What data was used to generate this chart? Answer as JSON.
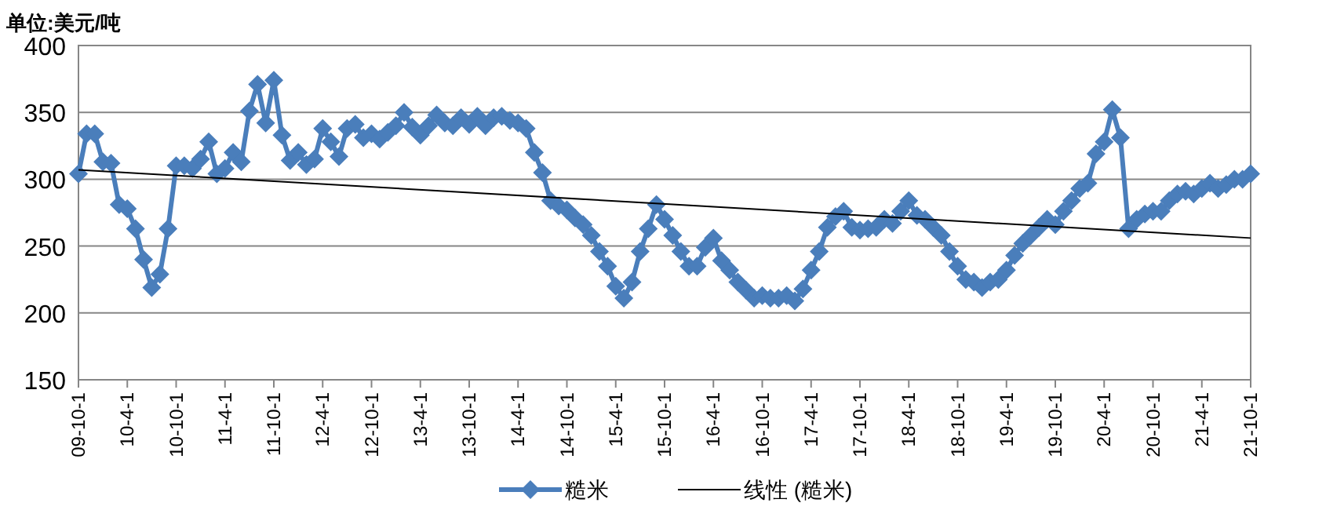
{
  "chart_data": {
    "type": "line",
    "ylabel": "单位:美元/吨",
    "ylim": [
      150,
      400
    ],
    "yticks": [
      150,
      200,
      250,
      300,
      350,
      400
    ],
    "grid": "y",
    "legend": "bottom",
    "xlim": [
      "2009-10",
      "2021-10"
    ],
    "xticks": [
      {
        "value": "2009-10",
        "label": "09-10-1"
      },
      {
        "value": "2010-04",
        "label": "10-4-1"
      },
      {
        "value": "2010-10",
        "label": "10-10-1"
      },
      {
        "value": "2011-04",
        "label": "11-4-1"
      },
      {
        "value": "2011-10",
        "label": "11-10-1"
      },
      {
        "value": "2012-04",
        "label": "12-4-1"
      },
      {
        "value": "2012-10",
        "label": "12-10-1"
      },
      {
        "value": "2013-04",
        "label": "13-4-1"
      },
      {
        "value": "2013-10",
        "label": "13-10-1"
      },
      {
        "value": "2014-04",
        "label": "14-4-1"
      },
      {
        "value": "2014-10",
        "label": "14-10-1"
      },
      {
        "value": "2015-04",
        "label": "15-4-1"
      },
      {
        "value": "2015-10",
        "label": "15-10-1"
      },
      {
        "value": "2016-04",
        "label": "16-4-1"
      },
      {
        "value": "2016-10",
        "label": "16-10-1"
      },
      {
        "value": "2017-04",
        "label": "17-4-1"
      },
      {
        "value": "2017-10",
        "label": "17-10-1"
      },
      {
        "value": "2018-04",
        "label": "18-4-1"
      },
      {
        "value": "2018-10",
        "label": "18-10-1"
      },
      {
        "value": "2019-04",
        "label": "19-4-1"
      },
      {
        "value": "2019-10",
        "label": "19-10-1"
      },
      {
        "value": "2020-04",
        "label": "20-4-1"
      },
      {
        "value": "2020-10",
        "label": "20-10-1"
      },
      {
        "value": "2021-04",
        "label": "21-4-1"
      },
      {
        "value": "2021-10",
        "label": "21-10-1"
      }
    ],
    "series": [
      {
        "name": "糙米",
        "color": "#4a7ebb",
        "marker": "diamond",
        "line_style": "solid",
        "x": [
          "2009-10",
          "2009-11",
          "2009-12",
          "2010-01",
          "2010-02",
          "2010-03",
          "2010-04",
          "2010-05",
          "2010-06",
          "2010-07",
          "2010-08",
          "2010-09",
          "2010-10",
          "2010-11",
          "2010-12",
          "2011-01",
          "2011-02",
          "2011-03",
          "2011-04",
          "2011-05",
          "2011-06",
          "2011-07",
          "2011-08",
          "2011-09",
          "2011-10",
          "2011-11",
          "2011-12",
          "2012-01",
          "2012-02",
          "2012-03",
          "2012-04",
          "2012-05",
          "2012-06",
          "2012-07",
          "2012-08",
          "2012-09",
          "2012-10",
          "2012-11",
          "2012-12",
          "2013-01",
          "2013-02",
          "2013-03",
          "2013-04",
          "2013-05",
          "2013-06",
          "2013-07",
          "2013-08",
          "2013-09",
          "2013-10",
          "2013-11",
          "2013-12",
          "2014-01",
          "2014-02",
          "2014-03",
          "2014-04",
          "2014-05",
          "2014-06",
          "2014-07",
          "2014-08",
          "2014-09",
          "2014-10",
          "2014-11",
          "2014-12",
          "2015-01",
          "2015-02",
          "2015-03",
          "2015-04",
          "2015-05",
          "2015-06",
          "2015-07",
          "2015-08",
          "2015-09",
          "2015-10",
          "2015-11",
          "2015-12",
          "2016-01",
          "2016-02",
          "2016-03",
          "2016-04",
          "2016-05",
          "2016-06",
          "2016-07",
          "2016-08",
          "2016-09",
          "2016-10",
          "2016-11",
          "2016-12",
          "2017-01",
          "2017-02",
          "2017-03",
          "2017-04",
          "2017-05",
          "2017-06",
          "2017-07",
          "2017-08",
          "2017-09",
          "2017-10",
          "2017-11",
          "2017-12",
          "2018-01",
          "2018-02",
          "2018-03",
          "2018-04",
          "2018-05",
          "2018-06",
          "2018-07",
          "2018-08",
          "2018-09",
          "2018-10",
          "2018-11",
          "2018-12",
          "2019-01",
          "2019-02",
          "2019-03",
          "2019-04",
          "2019-05",
          "2019-06",
          "2019-07",
          "2019-08",
          "2019-09",
          "2019-10",
          "2019-11",
          "2019-12",
          "2020-01",
          "2020-02",
          "2020-03",
          "2020-04",
          "2020-05",
          "2020-06",
          "2020-07",
          "2020-08",
          "2020-09",
          "2020-10",
          "2020-11",
          "2020-12",
          "2021-01",
          "2021-02",
          "2021-03",
          "2021-04",
          "2021-05",
          "2021-06",
          "2021-07",
          "2021-08",
          "2021-09",
          "2021-10"
        ],
        "values": [
          304,
          334,
          334,
          313,
          312,
          281,
          278,
          263,
          240,
          219,
          229,
          263,
          310,
          310,
          308,
          315,
          328,
          304,
          308,
          320,
          313,
          351,
          371,
          342,
          374,
          333,
          314,
          320,
          311,
          315,
          338,
          328,
          317,
          338,
          341,
          331,
          334,
          330,
          335,
          340,
          350,
          339,
          333,
          340,
          348,
          342,
          340,
          346,
          341,
          347,
          340,
          346,
          347,
          344,
          342,
          338,
          320,
          305,
          284,
          280,
          277,
          271,
          266,
          258,
          246,
          235,
          220,
          211,
          223,
          246,
          263,
          281,
          270,
          258,
          246,
          235,
          235,
          249,
          256,
          239,
          232,
          223,
          217,
          211,
          213,
          211,
          211,
          213,
          209,
          218,
          232,
          246,
          264,
          272,
          276,
          264,
          262,
          263,
          264,
          270,
          267,
          276,
          284,
          273,
          270,
          264,
          258,
          246,
          235,
          225,
          223,
          219,
          223,
          225,
          232,
          243,
          252,
          258,
          264,
          270,
          266,
          276,
          284,
          293,
          297,
          319,
          328,
          352,
          331,
          263,
          270,
          274,
          276,
          276,
          284,
          289,
          291,
          289,
          293,
          297,
          293,
          296,
          300,
          300,
          304
        ]
      },
      {
        "name": "线性 (糙米)",
        "color": "#000000",
        "marker": "none",
        "line_style": "solid",
        "x": [
          "2009-10",
          "2021-10"
        ],
        "values": [
          307,
          256
        ]
      }
    ]
  }
}
